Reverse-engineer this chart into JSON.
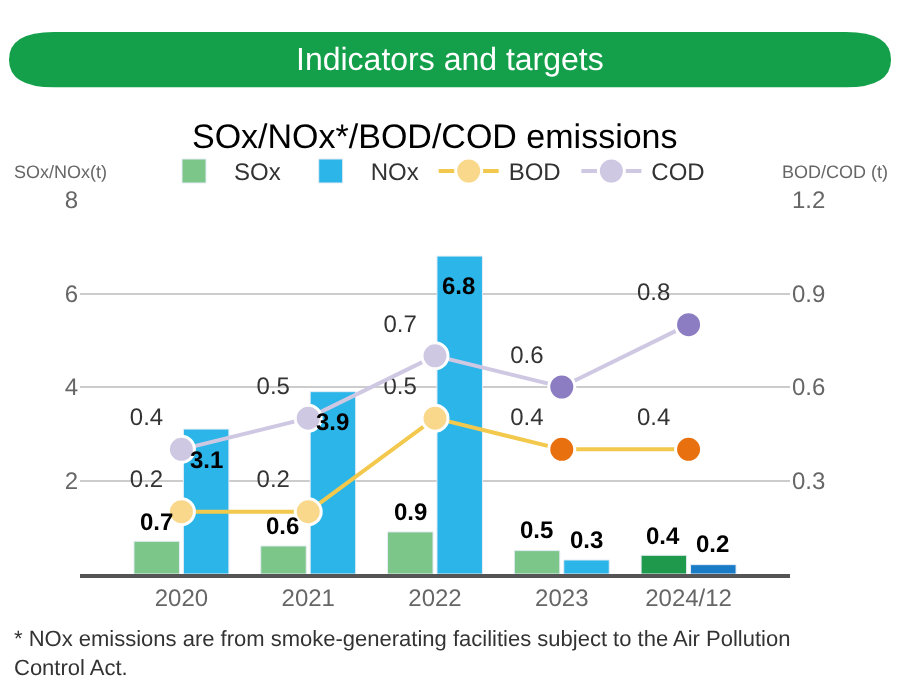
{
  "chart_data": {
    "type": "bar",
    "title": "Indicators and targets",
    "subtitle": "SOx/NOx*/BOD/COD emissions",
    "ylabel": "SOx/NOx(t)",
    "y2label": "BOD/COD (t)",
    "categories": [
      "2020",
      "2021",
      "2022",
      "2023",
      "2024/12"
    ],
    "series": [
      {
        "name": "SOx",
        "color": "#5fba6e",
        "colors": [
          "#7cc689",
          "#7cc689",
          "#7cc689",
          "#7cc689",
          "#1f9a4c"
        ],
        "values": [
          0.7,
          0.6,
          0.9,
          0.5,
          0.4
        ]
      },
      {
        "name": "NOx",
        "color": "#2bb5e8",
        "colors": [
          "#2bb5e8",
          "#2bb5e8",
          "#2bb5e8",
          "#2bb5e8",
          "#1a7cc6"
        ],
        "values": [
          3.1,
          3.9,
          6.8,
          0.3,
          0.2
        ]
      },
      {
        "name": "BOD",
        "type": "line",
        "axis": "y2",
        "color": "#f2c94c",
        "colors": [
          "#f9d88c",
          "#f9d88c",
          "#f9d88c",
          "#e8700e",
          "#e8700e"
        ],
        "values": [
          0.2,
          0.2,
          0.5,
          0.4,
          0.4
        ]
      },
      {
        "name": "COD",
        "type": "line",
        "axis": "y2",
        "color": "#cfc8e3",
        "colors": [
          "#cfc8e3",
          "#cfc8e3",
          "#cfc8e3",
          "#8c7dc2",
          "#8c7dc2"
        ],
        "values": [
          0.4,
          0.5,
          0.7,
          0.6,
          0.8
        ]
      }
    ],
    "ylim": [
      0,
      8
    ],
    "yticks": [
      2,
      4,
      6,
      8
    ],
    "y2lim": [
      0,
      1.2
    ],
    "y2ticks": [
      0.3,
      0.6,
      0.9,
      1.2
    ],
    "data_labels": true,
    "grid": "y",
    "legend": "top",
    "marker": "circle",
    "annotations": [
      "* NOx emissions are from smoke-generating facilities subject to the Air Pollution Control Act."
    ]
  }
}
